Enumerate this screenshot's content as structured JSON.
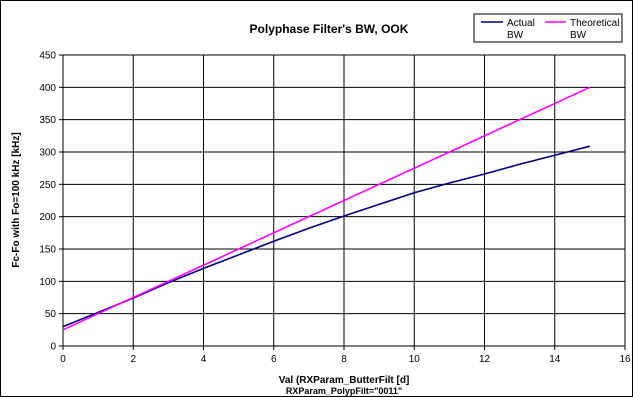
{
  "chart_data": {
    "type": "line",
    "title": "Polyphase Filter's BW, OOK",
    "xlabel": "Val (RXParam_ButterFilt [d]",
    "xlabel2": "RXParam_PolypFilt=\"0011\"",
    "ylabel": "Fc-Fo with Fo=100 kHz [kHz]",
    "xlim": [
      0,
      16
    ],
    "ylim": [
      0,
      450
    ],
    "xticks": [
      0,
      2,
      4,
      6,
      8,
      10,
      12,
      14,
      16
    ],
    "yticks": [
      0,
      50,
      100,
      150,
      200,
      250,
      300,
      350,
      400,
      450
    ],
    "grid": true,
    "legend_position": "top-right",
    "series": [
      {
        "name": "Actual BW",
        "color": "#000080",
        "x": [
          0,
          1,
          2,
          3,
          4,
          5,
          6,
          7,
          8,
          9,
          10,
          11,
          12,
          13,
          14,
          15
        ],
        "y": [
          30,
          52,
          74,
          98,
          120,
          141,
          162,
          182,
          201,
          219,
          237,
          252,
          266,
          281,
          295,
          309
        ]
      },
      {
        "name": "Theoretical BW",
        "color": "#ff00ff",
        "x": [
          0,
          15
        ],
        "y": [
          25,
          400
        ]
      }
    ]
  }
}
